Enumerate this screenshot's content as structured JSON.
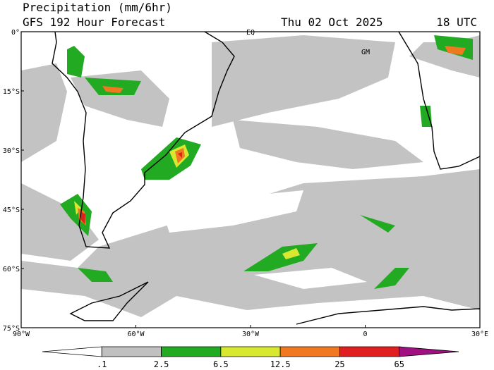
{
  "header": {
    "title": "Precipitation (mm/6hr)",
    "subtitle": "GFS 192 Hour Forecast",
    "date": "Thu 02 Oct 2025",
    "time": "18 UTC"
  },
  "map": {
    "lat_labels": [
      "0°",
      "15°S",
      "30°S",
      "45°S",
      "60°S",
      "75°S"
    ],
    "lon_labels": [
      "90°W",
      "60°W",
      "30°W",
      "0",
      "30°E"
    ],
    "annotations": [
      "EQ",
      "GM"
    ]
  },
  "colorbar": {
    "labels": [
      ".1",
      "2.5",
      "6.5",
      "12.5",
      "25",
      "65"
    ],
    "colors": [
      "#ffffff",
      "#c0c0c0",
      "#22aa22",
      "#d8e830",
      "#f07820",
      "#e02020",
      "#a01080"
    ]
  }
}
